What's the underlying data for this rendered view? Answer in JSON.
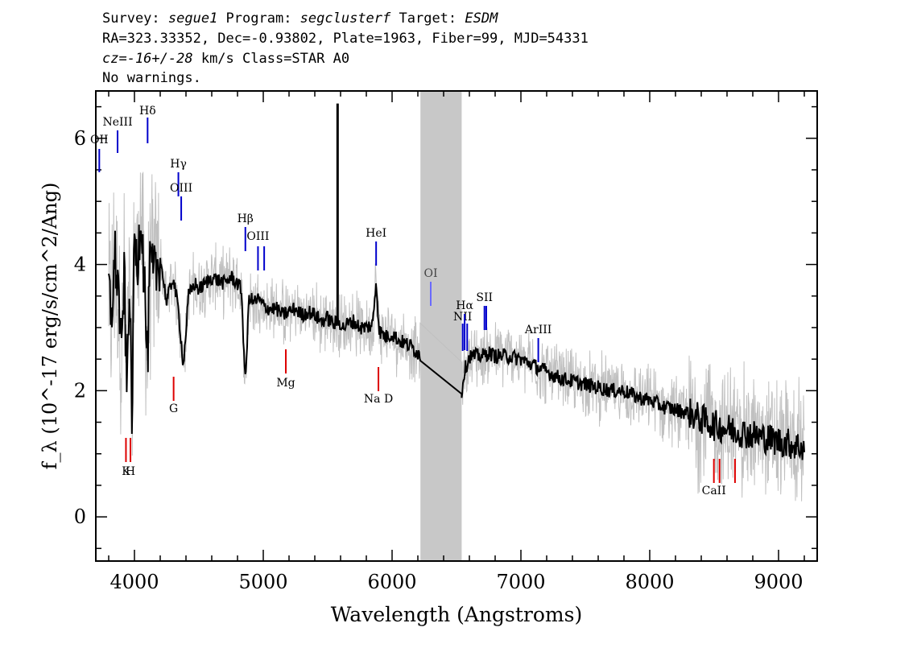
{
  "header": {
    "line1": {
      "survey_label": "Survey: ",
      "survey": "segue1",
      "program_label": " Program: ",
      "program": "segclusterf",
      "target_label": " Target: ",
      "target": "ESDM"
    },
    "line2": "RA=323.33352, Dec=-0.93802, Plate=1963, Fiber=99, MJD=54331",
    "line3": {
      "cz": "cz=-16+/-28",
      "rest": " km/s Class=STAR A0"
    },
    "line4": "No warnings."
  },
  "chart_data": {
    "type": "line",
    "xlabel": "Wavelength (Angstroms)",
    "ylabel": "f_λ (10^-17 erg/s/cm^2/Ang)",
    "xlim": [
      3700,
      9300
    ],
    "ylim": [
      -0.7,
      6.75
    ],
    "x_ticks": [
      4000,
      5000,
      6000,
      7000,
      8000,
      9000
    ],
    "y_ticks": [
      0,
      2,
      4,
      6
    ],
    "masked_region": [
      6220,
      6540
    ],
    "colors": {
      "flux": "#000000",
      "noise_band": "#c0c0c0",
      "mask": "#c8c8c8",
      "emission": "#0000cc",
      "absorption": "#dd0000",
      "weak": "#6a6aff"
    },
    "series": [
      {
        "x": [
          3800,
          3820,
          3850,
          3880,
          3900,
          3920,
          3940,
          3960,
          3980,
          4000,
          4020,
          4050,
          4080,
          4101,
          4120,
          4150,
          4200,
          4250,
          4300,
          4340,
          4380,
          4420,
          4470,
          4500,
          4550,
          4600,
          4650,
          4700,
          4750,
          4800,
          4830,
          4861,
          4890,
          4920,
          4960,
          5000,
          5050,
          5100,
          5150,
          5200,
          5250,
          5300,
          5350,
          5400,
          5450,
          5500,
          5550,
          5590,
          5620,
          5650,
          5700,
          5750,
          5800,
          5850,
          5876,
          5900,
          5950,
          6000,
          6050,
          6100,
          6150,
          6200,
          6220,
          6540,
          6560,
          6600,
          6650,
          6700,
          6750,
          6800,
          6900,
          7000,
          7100,
          7200,
          7300,
          7400,
          7500,
          7600,
          7700,
          7800,
          7900,
          8000,
          8100,
          8200,
          8300,
          8400,
          8500,
          8600,
          8700,
          8800,
          8900,
          9000,
          9100,
          9200
        ],
        "y": [
          3.6,
          3.2,
          4.1,
          3.5,
          2.4,
          4.0,
          1.9,
          3.8,
          1.5,
          4.5,
          3.9,
          4.9,
          3.6,
          2.4,
          4.0,
          3.8,
          4.1,
          3.4,
          3.8,
          3.3,
          2.4,
          3.5,
          3.7,
          3.6,
          3.7,
          3.8,
          3.75,
          3.7,
          3.8,
          3.7,
          3.6,
          2.1,
          3.5,
          3.4,
          3.45,
          3.35,
          3.3,
          3.3,
          3.2,
          3.25,
          3.3,
          3.2,
          3.25,
          3.2,
          3.1,
          3.15,
          3.05,
          3.1,
          3.0,
          3.05,
          3.1,
          3.0,
          3.0,
          3.05,
          3.75,
          2.95,
          2.85,
          2.9,
          2.8,
          2.75,
          2.7,
          2.6,
          2.55,
          1.95,
          2.3,
          2.55,
          2.55,
          2.55,
          2.6,
          2.55,
          2.55,
          2.5,
          2.4,
          2.3,
          2.2,
          2.15,
          2.1,
          2.05,
          2.0,
          2.0,
          1.9,
          1.85,
          1.75,
          1.7,
          1.65,
          1.55,
          1.45,
          1.4,
          1.35,
          1.3,
          1.25,
          1.2,
          1.15,
          1.1
        ],
        "spikes": [
          [
            5577,
            6.55
          ]
        ]
      }
    ],
    "annotations": [
      {
        "label": "OII",
        "x": 3727,
        "kind": "emission"
      },
      {
        "label": "NeIII",
        "x": 3869,
        "kind": "emission"
      },
      {
        "label": "Hδ",
        "x": 4102,
        "kind": "emission"
      },
      {
        "label": "Hγ",
        "x": 4341,
        "kind": "emission"
      },
      {
        "label": "OIII",
        "x": 4363,
        "kind": "emission"
      },
      {
        "label": "Hβ",
        "x": 4861,
        "kind": "emission"
      },
      {
        "label": "OIII",
        "x": 4959,
        "kind": "emission"
      },
      {
        "label": "OIII",
        "x": 5007,
        "kind": "emission"
      },
      {
        "label": "HeI",
        "x": 5876,
        "kind": "emission"
      },
      {
        "label": "OI",
        "x": 6300,
        "kind": "weak"
      },
      {
        "label": "NII",
        "x": 6548,
        "kind": "emission"
      },
      {
        "label": "Hα",
        "x": 6563,
        "kind": "emission"
      },
      {
        "label": "NII",
        "x": 6583,
        "kind": "emission"
      },
      {
        "label": "SII",
        "x": 6717,
        "kind": "emission"
      },
      {
        "label": "SII",
        "x": 6731,
        "kind": "emission"
      },
      {
        "label": "ArIII",
        "x": 7135,
        "kind": "emission"
      },
      {
        "label": "K",
        "x": 3934,
        "kind": "absorption"
      },
      {
        "label": "H",
        "x": 3969,
        "kind": "absorption"
      },
      {
        "label": "G",
        "x": 4304,
        "kind": "absorption"
      },
      {
        "label": "Mg",
        "x": 5175,
        "kind": "absorption"
      },
      {
        "label": "Na D",
        "x": 5894,
        "kind": "absorption"
      },
      {
        "label": "CaII",
        "x": 8498,
        "kind": "absorption"
      },
      {
        "label": "CaII",
        "x": 8542,
        "kind": "absorption"
      },
      {
        "label": "CaII",
        "x": 8662,
        "kind": "absorption"
      }
    ]
  }
}
